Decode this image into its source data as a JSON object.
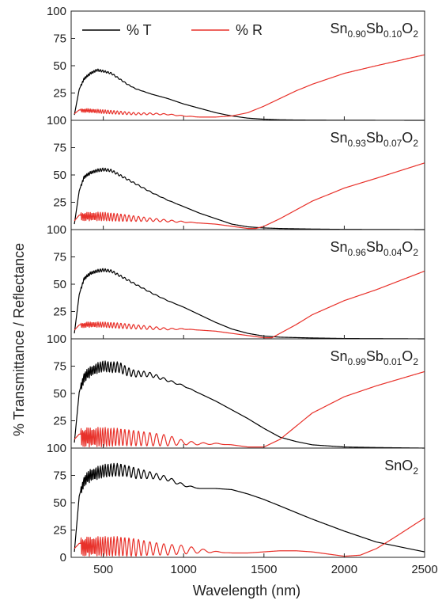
{
  "chart_data": {
    "type": "line",
    "xlabel": "Wavelength (nm)",
    "ylabel": "% Transmittance / Reflectance",
    "xlim": [
      300,
      2500
    ],
    "ylim": [
      0,
      100
    ],
    "x_ticks": [
      "500",
      "1000",
      "1500",
      "2000",
      "2500"
    ],
    "y_ticks": [
      "0",
      "25",
      "50",
      "75",
      "100"
    ],
    "grid": false,
    "legend": {
      "placement": "top-left",
      "entries": [
        {
          "name": "% T",
          "color": "#000000"
        },
        {
          "name": "% R",
          "color": "#e8312a"
        }
      ]
    },
    "panels": [
      {
        "label_parts": [
          [
            "Sn",
            "n"
          ],
          [
            "0.90",
            "s"
          ],
          [
            "Sb",
            "n"
          ],
          [
            "0.10",
            "s"
          ],
          [
            "O",
            "n"
          ],
          [
            "2",
            "s"
          ]
        ],
        "series": [
          {
            "name": "% T",
            "x": [
              320,
              350,
              380,
              420,
              460,
              500,
              550,
              600,
              650,
              700,
              800,
              900,
              1000,
              1100,
              1200,
              1300,
              1400,
              1500,
              1600,
              1700,
              1800,
              2000,
              2500
            ],
            "y": [
              5,
              28,
              38,
              43,
              46,
              45,
              43,
              38,
              33,
              29,
              24,
              20,
              15,
              11,
              7,
              4,
              2,
              1,
              0.5,
              0.3,
              0.2,
              0.1,
              0
            ],
            "osc_amp": [
              0,
              0.8,
              1.2,
              1.2,
              1.2,
              1.0,
              0.8,
              0.6,
              0.4,
              0.2,
              0,
              0,
              0,
              0,
              0,
              0,
              0,
              0,
              0,
              0,
              0,
              0,
              0
            ]
          },
          {
            "name": "% R",
            "x": [
              320,
              350,
              400,
              500,
              600,
              700,
              800,
              900,
              1000,
              1100,
              1200,
              1300,
              1400,
              1500,
              1600,
              1700,
              1800,
              2000,
              2200,
              2500
            ],
            "y": [
              6,
              9,
              9,
              8,
              7,
              6,
              6,
              5.5,
              4,
              3,
              3,
              4,
              7,
              13,
              20,
              27,
              33,
              43,
              50,
              60
            ],
            "osc_amp": [
              0,
              1.5,
              1.8,
              1.8,
              1.5,
              1.0,
              0.8,
              0.5,
              0.3,
              0,
              0,
              0,
              0,
              0,
              0,
              0,
              0,
              0,
              0,
              0
            ]
          }
        ]
      },
      {
        "label_parts": [
          [
            "Sn",
            "n"
          ],
          [
            "0.93",
            "s"
          ],
          [
            "Sb",
            "n"
          ],
          [
            "0.07",
            "s"
          ],
          [
            "O",
            "n"
          ],
          [
            "2",
            "s"
          ]
        ],
        "series": [
          {
            "name": "% T",
            "x": [
              320,
              350,
              380,
              420,
              460,
              500,
              550,
              600,
              650,
              700,
              800,
              900,
              1000,
              1100,
              1200,
              1300,
              1400,
              1500,
              1600,
              1800,
              2000,
              2500
            ],
            "y": [
              5,
              35,
              48,
              52,
              54,
              55,
              54,
              50,
              46,
              42,
              34,
              27,
              21,
              15,
              10,
              5,
              2.5,
              1.5,
              1,
              0.5,
              0.2,
              0
            ],
            "osc_amp": [
              0,
              1.0,
              1.5,
              1.5,
              1.5,
              1.5,
              1.2,
              1.0,
              0.8,
              0.6,
              0.4,
              0.2,
              0,
              0,
              0,
              0,
              0,
              0,
              0,
              0,
              0,
              0
            ]
          },
          {
            "name": "% R",
            "x": [
              320,
              350,
              400,
              500,
              600,
              700,
              800,
              900,
              1000,
              1100,
              1200,
              1300,
              1400,
              1450,
              1500,
              1600,
              1700,
              1800,
              2000,
              2200,
              2500
            ],
            "y": [
              8,
              12,
              12,
              12,
              11,
              10,
              9,
              8,
              7,
              6,
              5,
              3,
              1,
              1,
              3,
              10,
              18,
              26,
              38,
              47,
              61
            ],
            "osc_amp": [
              0,
              3.5,
              4.0,
              4.0,
              3.5,
              2.5,
              1.5,
              1.0,
              0.5,
              0,
              0,
              0,
              0,
              0,
              0,
              0,
              0,
              0,
              0,
              0,
              0
            ]
          }
        ]
      },
      {
        "label_parts": [
          [
            "Sn",
            "n"
          ],
          [
            "0.96",
            "s"
          ],
          [
            "Sb",
            "n"
          ],
          [
            "0.04",
            "s"
          ],
          [
            "O",
            "n"
          ],
          [
            "2",
            "s"
          ]
        ],
        "series": [
          {
            "name": "% T",
            "x": [
              320,
              350,
              380,
              420,
              460,
              500,
              550,
              600,
              650,
              700,
              800,
              900,
              1000,
              1100,
              1200,
              1300,
              1400,
              1500,
              1600,
              1800,
              2000,
              2500
            ],
            "y": [
              5,
              40,
              55,
              60,
              62,
              63,
              62,
              58,
              54,
              50,
              42,
              35,
              29,
              22,
              15,
              9,
              5,
              2.5,
              1.5,
              0.8,
              0.3,
              0
            ],
            "osc_amp": [
              0,
              1.2,
              1.5,
              1.5,
              1.5,
              1.5,
              1.2,
              1.0,
              0.8,
              0.6,
              0.4,
              0.2,
              0,
              0,
              0,
              0,
              0,
              0,
              0,
              0,
              0,
              0
            ]
          },
          {
            "name": "% R",
            "x": [
              320,
              350,
              400,
              500,
              600,
              700,
              800,
              900,
              1000,
              1100,
              1200,
              1300,
              1400,
              1500,
              1550,
              1600,
              1700,
              1800,
              2000,
              2200,
              2500
            ],
            "y": [
              8,
              12,
              13,
              13,
              12,
              11,
              10,
              9,
              9,
              8,
              7,
              5,
              3,
              1,
              1,
              5,
              13,
              22,
              35,
              45,
              62
            ],
            "osc_amp": [
              0,
              2.0,
              2.5,
              2.5,
              2.5,
              2.0,
              1.5,
              0.8,
              0.3,
              0,
              0,
              0,
              0,
              0,
              0,
              0,
              0,
              0,
              0,
              0,
              0
            ]
          }
        ]
      },
      {
        "label_parts": [
          [
            "Sn",
            "n"
          ],
          [
            "0.99",
            "s"
          ],
          [
            "Sb",
            "n"
          ],
          [
            "0.01",
            "s"
          ],
          [
            "O",
            "n"
          ],
          [
            "2",
            "s"
          ]
        ],
        "series": [
          {
            "name": "% T",
            "x": [
              320,
              350,
              380,
              420,
              460,
              500,
              550,
              600,
              650,
              700,
              750,
              800,
              900,
              1000,
              1100,
              1200,
              1300,
              1400,
              1500,
              1600,
              1700,
              1800,
              2000,
              2200,
              2500
            ],
            "y": [
              5,
              50,
              65,
              70,
              73,
              75,
              74,
              74,
              70,
              68,
              68,
              67,
              62,
              57,
              50,
              43,
              35,
              27,
              18,
              10,
              6,
              3,
              1,
              0.5,
              0
            ],
            "osc_amp": [
              0,
              3,
              5,
              5,
              5,
              5,
              5,
              5,
              4,
              3,
              2.5,
              2,
              1,
              0.5,
              0,
              0,
              0,
              0,
              0,
              0,
              0,
              0,
              0,
              0,
              0
            ]
          },
          {
            "name": "% R",
            "x": [
              320,
              350,
              400,
              500,
              600,
              700,
              800,
              900,
              1000,
              1100,
              1200,
              1300,
              1400,
              1500,
              1600,
              1700,
              1800,
              2000,
              2200,
              2500
            ],
            "y": [
              8,
              10,
              10,
              10,
              10,
              9,
              8,
              7,
              5,
              4,
              4,
              3,
              1,
              1,
              8,
              20,
              32,
              47,
              57,
              70
            ],
            "osc_amp": [
              0,
              8,
              9,
              9,
              8,
              7,
              6,
              5,
              2,
              1,
              0.5,
              0,
              0,
              0,
              0,
              0,
              0,
              0,
              0,
              0
            ]
          }
        ]
      },
      {
        "label_parts": [
          [
            "SnO",
            "n"
          ],
          [
            "2",
            "s"
          ]
        ],
        "series": [
          {
            "name": "% T",
            "x": [
              320,
              350,
              380,
              420,
              460,
              500,
              550,
              600,
              650,
              700,
              750,
              800,
              900,
              1000,
              1100,
              1200,
              1300,
              1400,
              1500,
              1600,
              1700,
              1800,
              2000,
              2200,
              2500
            ],
            "y": [
              5,
              55,
              70,
              75,
              77,
              79,
              80,
              80,
              79,
              77,
              76,
              75,
              72,
              66,
              63,
              63,
              62,
              58,
              53,
              47,
              41,
              35,
              24,
              14,
              5
            ],
            "osc_amp": [
              0,
              3,
              5,
              6,
              6,
              6,
              6,
              6,
              5,
              5,
              4,
              3,
              2,
              1,
              0,
              0,
              0,
              0,
              0,
              0,
              0,
              0,
              0,
              0,
              0
            ]
          },
          {
            "name": "% R",
            "x": [
              320,
              350,
              400,
              500,
              600,
              700,
              800,
              900,
              1000,
              1100,
              1200,
              1300,
              1400,
              1500,
              1600,
              1700,
              1800,
              1900,
              2000,
              2100,
              2200,
              2300,
              2500
            ],
            "y": [
              8,
              10,
              10,
              10,
              10,
              9,
              8,
              7,
              7,
              6,
              5,
              4,
              4,
              5,
              6,
              6,
              5,
              3,
              1,
              2,
              8,
              17,
              36
            ],
            "osc_amp": [
              0,
              8,
              9,
              9,
              9,
              8,
              6,
              5,
              4,
              2,
              0.5,
              0,
              0,
              0,
              0,
              0,
              0,
              0,
              0,
              0,
              0,
              0,
              0
            ]
          }
        ]
      }
    ]
  }
}
